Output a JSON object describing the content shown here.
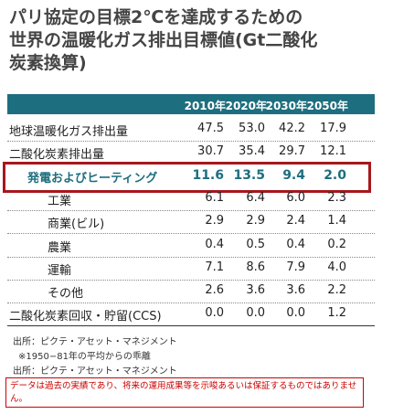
{
  "title_lines": [
    "パリ協定の目標2℃を達成するための",
    "世界の温暖化ガス排出目標値(Gt二酸化",
    "炭素換算)"
  ],
  "table": {
    "columns": [
      "2010年",
      "2020年",
      "2030年",
      "2050年"
    ],
    "highlight_row": 2,
    "rows": [
      {
        "label": "地球温暖化ガス排出量",
        "cells": [
          "47.5",
          "53.0",
          "42.2",
          "17.9"
        ]
      },
      {
        "label": "二酸化炭素排出量",
        "cells": [
          "30.7",
          "35.4",
          "29.7",
          "12.1"
        ]
      },
      {
        "label": "発電およびヒーティング",
        "cells": [
          "11.6",
          "13.5",
          "9.4",
          "2.0"
        ]
      },
      {
        "label": "工業",
        "indent": true,
        "cells": [
          "6.1",
          "6.4",
          "6.0",
          "2.3"
        ]
      },
      {
        "label": "商業(ビル)",
        "indent": true,
        "cells": [
          "2.9",
          "2.9",
          "2.4",
          "1.4"
        ]
      },
      {
        "label": "農業",
        "indent": true,
        "cells": [
          "0.4",
          "0.5",
          "0.4",
          "0.2"
        ]
      },
      {
        "label": "運輸",
        "indent": true,
        "cells": [
          "7.1",
          "8.6",
          "7.9",
          "4.0"
        ]
      },
      {
        "label": "その他",
        "indent": true,
        "cells": [
          "2.6",
          "3.6",
          "3.6",
          "2.2"
        ]
      },
      {
        "label": "二酸化炭素回収・貯留(CCS)",
        "cells": [
          "0.0",
          "0.0",
          "0.0",
          "1.2"
        ]
      }
    ]
  },
  "notes": [
    "出所：ピクテ・アセット・マネジメント",
    "※1950−81年の平均からの乖離",
    "出所：ピクテ・アセット・マネジメント"
  ],
  "disclaimer": "データは過去の実績であり、将来の運用成果等を示唆あるいは保証するものではありません。"
}
